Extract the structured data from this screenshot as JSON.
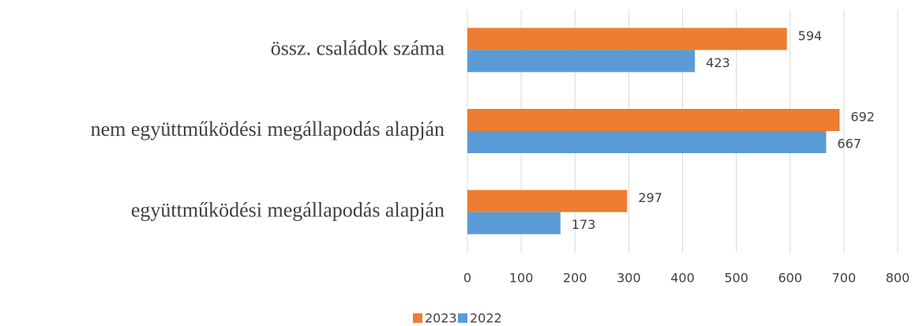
{
  "chart_data": {
    "type": "hbar",
    "categories": [
      "össz. családok száma",
      "nem együttműködési megállapodás alapján",
      "együttműködési megállapodás alapján"
    ],
    "series": [
      {
        "name": "2023",
        "color": "#ed7d31",
        "values": [
          594,
          692,
          297
        ]
      },
      {
        "name": "2022",
        "color": "#5b9bd5",
        "values": [
          423,
          667,
          173
        ]
      }
    ],
    "xlim": [
      0,
      800
    ],
    "xticks": [
      0,
      100,
      200,
      300,
      400,
      500,
      600,
      700,
      800
    ],
    "grid": true,
    "legend": "bottom"
  }
}
